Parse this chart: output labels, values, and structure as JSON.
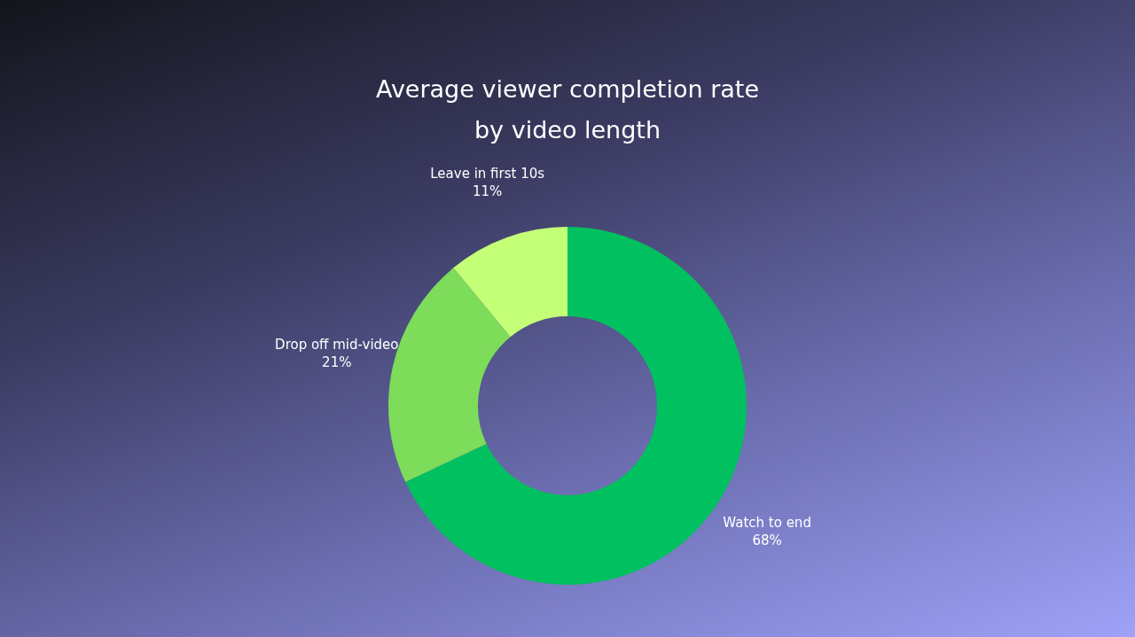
{
  "chart_data": {
    "type": "donut",
    "title": "Average viewer completion rate by video length",
    "categories": [
      "Watch to end",
      "Drop off mid-video",
      "Leave in first 10s"
    ],
    "values": [
      68,
      21,
      11
    ],
    "colors": [
      "#00c060",
      "#7ddc5a",
      "#c4ff78"
    ],
    "value_labels": [
      "68%",
      "21%",
      "11%"
    ],
    "legend": false
  }
}
